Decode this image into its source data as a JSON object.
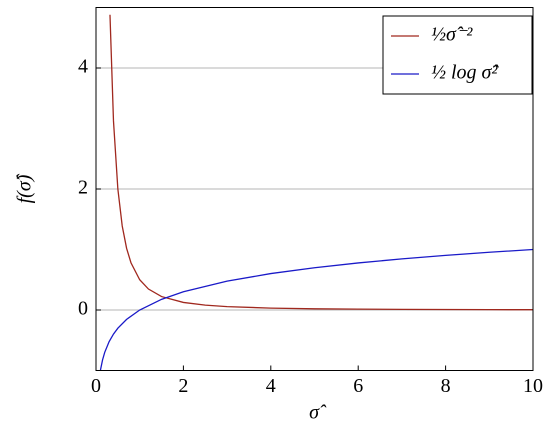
{
  "chart_data": {
    "type": "line",
    "xlabel": "σ̂",
    "ylabel": "f(σ̂)",
    "xlim": [
      0,
      10
    ],
    "ylim": [
      -1,
      5
    ],
    "xticks": [
      0,
      2,
      4,
      6,
      8,
      10
    ],
    "yticks": [
      0,
      2,
      4
    ],
    "grid": true,
    "legend": "upper right",
    "series": [
      {
        "name": "½σ̂⁻²",
        "color": "#a0281e",
        "x": [
          0.32,
          0.4,
          0.5,
          0.6,
          0.7,
          0.8,
          1,
          1.2,
          1.5,
          2,
          2.5,
          3,
          4,
          5,
          6,
          7,
          8,
          9,
          10
        ],
        "values": [
          4.88,
          3.125,
          2,
          1.389,
          1.02,
          0.781,
          0.5,
          0.347,
          0.222,
          0.125,
          0.08,
          0.056,
          0.031,
          0.02,
          0.014,
          0.01,
          0.008,
          0.006,
          0.005
        ]
      },
      {
        "name": "½ log σ̂²",
        "color": "#1a1ac8",
        "x": [
          0.1,
          0.15,
          0.2,
          0.3,
          0.4,
          0.5,
          0.7,
          1,
          1.5,
          2,
          3,
          4,
          5,
          6,
          7,
          8,
          9,
          10
        ],
        "values": [
          -1,
          -0.824,
          -0.699,
          -0.523,
          -0.398,
          -0.301,
          -0.155,
          0,
          0.176,
          0.301,
          0.477,
          0.602,
          0.699,
          0.778,
          0.845,
          0.903,
          0.954,
          1
        ]
      }
    ]
  }
}
